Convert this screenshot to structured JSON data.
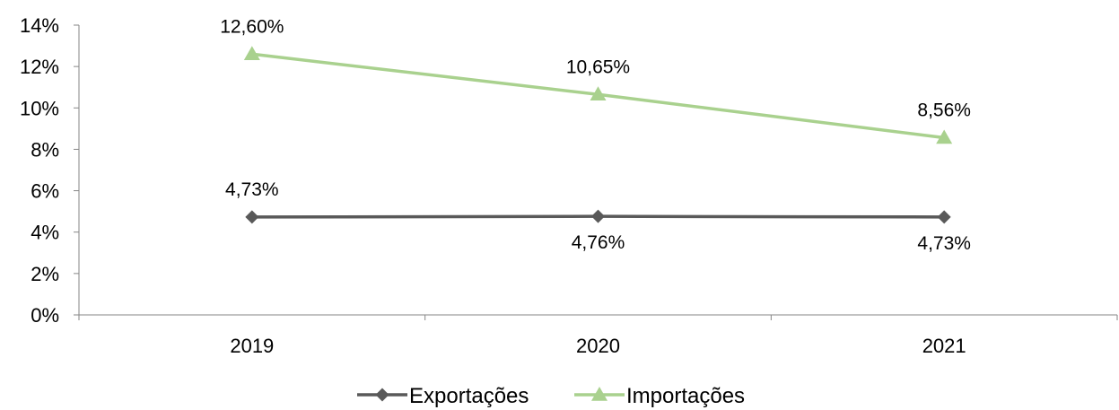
{
  "chart_data": {
    "type": "line",
    "title": "",
    "xlabel": "",
    "ylabel": "",
    "categories": [
      "2019",
      "2020",
      "2021"
    ],
    "ylim": [
      0,
      14
    ],
    "yticks": [
      0,
      2,
      4,
      6,
      8,
      10,
      12,
      14
    ],
    "ytick_labels": [
      "0%",
      "2%",
      "4%",
      "6%",
      "8%",
      "10%",
      "12%",
      "14%"
    ],
    "grid": false,
    "legend_position": "bottom",
    "series": [
      {
        "name": "Exportações",
        "values": [
          4.73,
          4.76,
          4.73
        ],
        "labels": [
          "4,73%",
          "4,76%",
          "4,73%"
        ],
        "label_positions": [
          "above",
          "below",
          "below"
        ],
        "color": "#595959",
        "marker": "diamond"
      },
      {
        "name": "Importações",
        "values": [
          12.6,
          10.65,
          8.56
        ],
        "labels": [
          "12,60%",
          "10,65%",
          "8,56%"
        ],
        "label_positions": [
          "above",
          "above",
          "above"
        ],
        "color": "#A9D18E",
        "marker": "triangle"
      }
    ]
  }
}
